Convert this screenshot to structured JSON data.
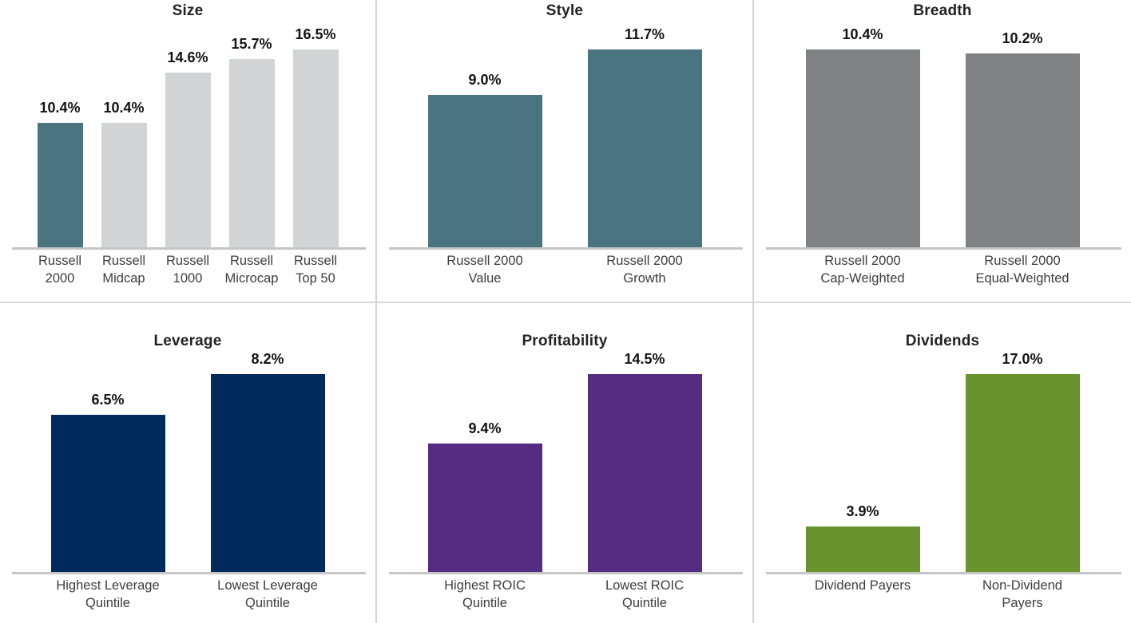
{
  "ui": {
    "background": "#ffffff",
    "divider_color": "#d4d4d4",
    "axis_color": "#c5c5c6",
    "value_label_color": "#131313",
    "category_label_color": "#3d3d3d",
    "title_color": "#242122"
  },
  "chart_data": [
    {
      "type": "bar",
      "title": "Size",
      "categories": [
        "Russell 2000",
        "Russell Midcap",
        "Russell 1000",
        "Russell Microcap",
        "Russell Top 50"
      ],
      "category_lines": [
        [
          "Russell",
          "2000"
        ],
        [
          "Russell",
          "Midcap"
        ],
        [
          "Russell",
          "1000"
        ],
        [
          "Russell",
          "Microcap"
        ],
        [
          "Russell",
          "Top 50"
        ]
      ],
      "values": [
        10.4,
        10.4,
        14.6,
        15.7,
        16.5
      ],
      "value_labels": [
        "10.4%",
        "10.4%",
        "14.6%",
        "15.7%",
        "16.5%"
      ],
      "colors": [
        "#4a7480",
        "#d2d3d5",
        "#d2d3d5",
        "#d2d3d5",
        "#d2d3d5"
      ],
      "xlabel": "",
      "ylabel": "",
      "ylim": [
        0,
        16.5
      ],
      "grid": false,
      "legend": "none"
    },
    {
      "type": "bar",
      "title": "Style",
      "categories": [
        "Russell 2000 Value",
        "Russell 2000 Growth"
      ],
      "category_lines": [
        [
          "Russell 2000",
          "Value"
        ],
        [
          "Russell 2000",
          "Growth"
        ]
      ],
      "values": [
        9.0,
        11.7
      ],
      "value_labels": [
        "9.0%",
        "11.7%"
      ],
      "colors": [
        "#4a7480",
        "#4a7480"
      ],
      "xlabel": "",
      "ylabel": "",
      "ylim": [
        0,
        11.7
      ],
      "grid": false,
      "legend": "none"
    },
    {
      "type": "bar",
      "title": "Breadth",
      "categories": [
        "Russell 2000 Cap-Weighted",
        "Russell 2000 Equal-Weighted"
      ],
      "category_lines": [
        [
          "Russell 2000",
          "Cap-Weighted"
        ],
        [
          "Russell 2000",
          "Equal-Weighted"
        ]
      ],
      "values": [
        10.4,
        10.2
      ],
      "value_labels": [
        "10.4%",
        "10.2%"
      ],
      "colors": [
        "#808184",
        "#808184"
      ],
      "xlabel": "",
      "ylabel": "",
      "ylim": [
        0,
        10.4
      ],
      "grid": false,
      "legend": "none"
    },
    {
      "type": "bar",
      "title": "Leverage",
      "categories": [
        "Highest Leverage Quintile",
        "Lowest Leverage Quintile"
      ],
      "category_lines": [
        [
          "Highest Leverage",
          "Quintile"
        ],
        [
          "Lowest Leverage",
          "Quintile"
        ]
      ],
      "values": [
        6.5,
        8.2
      ],
      "value_labels": [
        "6.5%",
        "8.2%"
      ],
      "colors": [
        "#002a5c",
        "#002a5c"
      ],
      "xlabel": "",
      "ylabel": "",
      "ylim": [
        0,
        8.2
      ],
      "grid": false,
      "legend": "none"
    },
    {
      "type": "bar",
      "title": "Profitability",
      "categories": [
        "Highest ROIC Quintile",
        "Lowest ROIC Quintile"
      ],
      "category_lines": [
        [
          "Highest ROIC",
          "Quintile"
        ],
        [
          "Lowest ROIC",
          "Quintile"
        ]
      ],
      "values": [
        9.4,
        14.5
      ],
      "value_labels": [
        "9.4%",
        "14.5%"
      ],
      "colors": [
        "#542c81",
        "#542c81"
      ],
      "xlabel": "",
      "ylabel": "",
      "ylim": [
        0,
        14.5
      ],
      "grid": false,
      "legend": "none"
    },
    {
      "type": "bar",
      "title": "Dividends",
      "categories": [
        "Dividend Payers",
        "Non-Dividend Payers"
      ],
      "category_lines": [
        [
          "Dividend Payers"
        ],
        [
          "Non-Dividend",
          "Payers"
        ]
      ],
      "values": [
        3.9,
        17.0
      ],
      "value_labels": [
        "3.9%",
        "17.0%"
      ],
      "colors": [
        "#67942c",
        "#67942c"
      ],
      "xlabel": "",
      "ylabel": "",
      "ylim": [
        0,
        17.0
      ],
      "grid": false,
      "legend": "none"
    }
  ]
}
